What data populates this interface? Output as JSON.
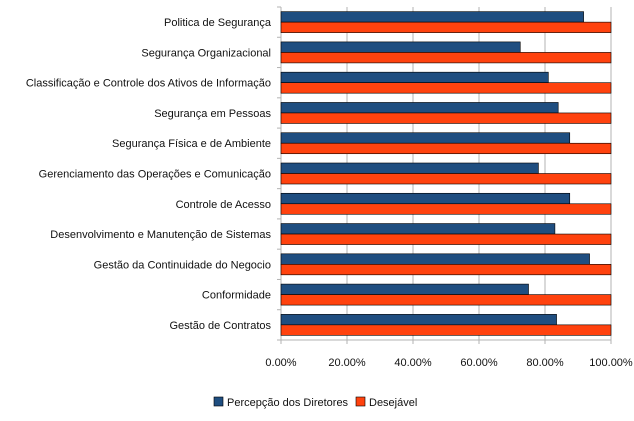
{
  "chart_data": {
    "type": "bar",
    "orientation": "horizontal",
    "categories": [
      "Politica de Segurança",
      "Segurança Organizacional",
      "Classificação e Controle dos Ativos de Informação",
      "Segurança em Pessoas",
      "Segurança Física e de Ambiente",
      "Gerenciamento das Operações e Comunicação",
      "Controle de Acesso",
      "Desenvolvimento e Manutenção de Sistemas",
      "Gestão da Continuidade do Negocio",
      "Conformidade",
      "Gestão de Contratos"
    ],
    "series": [
      {
        "name": "Percepção dos Diretores",
        "color": "#1f4e80",
        "values": [
          0.917,
          0.725,
          0.81,
          0.84,
          0.875,
          0.78,
          0.875,
          0.83,
          0.935,
          0.75,
          0.835
        ]
      },
      {
        "name": "Desejável",
        "color": "#ff420e",
        "values": [
          1.0,
          1.0,
          1.0,
          1.0,
          1.0,
          1.0,
          1.0,
          1.0,
          1.0,
          1.0,
          1.0
        ]
      }
    ],
    "xlim": [
      0,
      1
    ],
    "xticks": [
      0,
      0.2,
      0.4,
      0.6,
      0.8,
      1.0
    ],
    "xtick_labels": [
      "0.00%",
      "20.00%",
      "40.00%",
      "60.00%",
      "80.00%",
      "100.00%"
    ],
    "grid": true,
    "legend_position": "bottom"
  }
}
